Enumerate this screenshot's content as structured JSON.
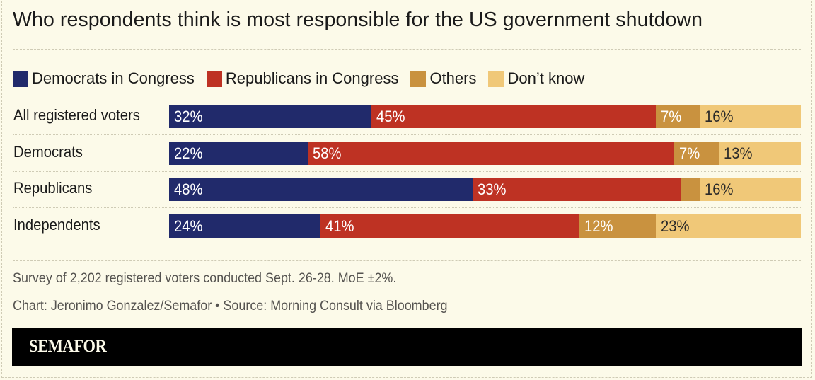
{
  "chart_data": {
    "type": "bar",
    "orientation": "horizontal",
    "stacked": true,
    "normalized": true,
    "title": "Who respondents think is most responsible for the US government shutdown",
    "xlabel": "",
    "ylabel": "",
    "xlim": [
      0,
      100
    ],
    "grid": false,
    "legend_position": "top-left",
    "categories": [
      "All registered voters",
      "Democrats",
      "Republicans",
      "Independents"
    ],
    "series": [
      {
        "name": "Democrats in Congress",
        "color": "#212a6b",
        "label_color": "#ffffff",
        "values": [
          32,
          22,
          48,
          24
        ],
        "labels": [
          "32%",
          "22%",
          "48%",
          "24%"
        ]
      },
      {
        "name": "Republicans in Congress",
        "color": "#be3223",
        "label_color": "#ffffff",
        "values": [
          45,
          58,
          33,
          41
        ],
        "labels": [
          "45%",
          "58%",
          "33%",
          "41%"
        ]
      },
      {
        "name": "Others",
        "color": "#c9923f",
        "label_color": "#ffffff",
        "values": [
          7,
          7,
          3,
          12
        ],
        "labels": [
          "7%",
          "7%",
          "",
          "12%"
        ]
      },
      {
        "name": "Don’t know",
        "color": "#f0c878",
        "label_color": "#2a2a2a",
        "values": [
          16,
          13,
          16,
          23
        ],
        "labels": [
          "16%",
          "13%",
          "16%",
          "23%"
        ]
      }
    ]
  },
  "notes": {
    "survey": "Survey of 2,202 registered voters conducted Sept. 26-28. MoE ±2%.",
    "credit": "Chart: Jeronimo Gonzalez/Semafor • Source: Morning Consult via Bloomberg"
  },
  "brand": {
    "logo": "SEMAFOR"
  }
}
